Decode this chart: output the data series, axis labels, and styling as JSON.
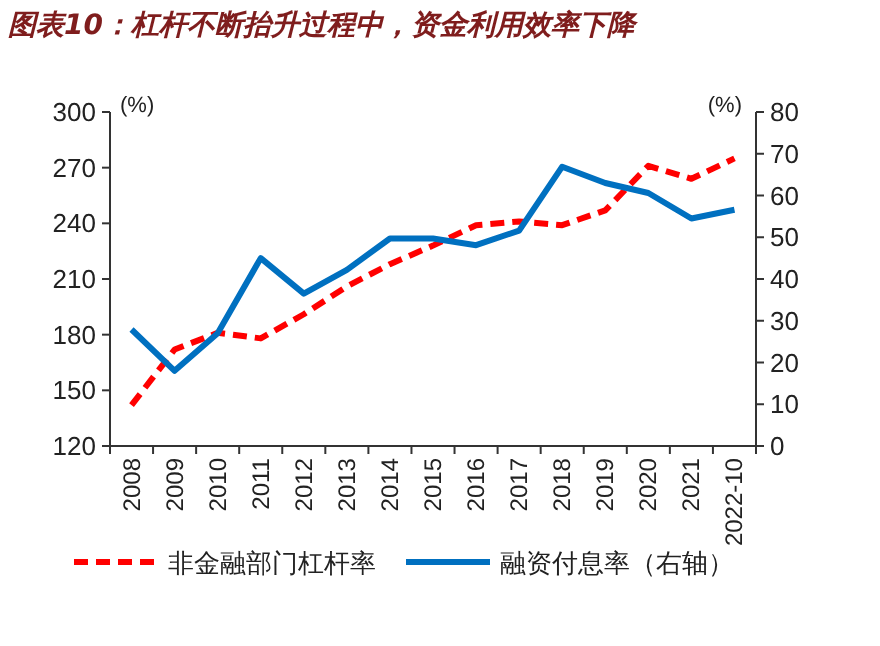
{
  "chart_data": {
    "type": "line",
    "title": "图表10：杠杆不断抬升过程中，资金利用效率下降",
    "ylabel": "(%)",
    "y2label": "(%)",
    "categories": [
      "2008",
      "2009",
      "2010",
      "2011",
      "2012",
      "2013",
      "2014",
      "2015",
      "2016",
      "2017",
      "2018",
      "2019",
      "2020",
      "2021",
      "2022-10"
    ],
    "ylim": [
      120,
      300
    ],
    "yticks": [
      120,
      150,
      180,
      210,
      240,
      270,
      300
    ],
    "y2lim": [
      0,
      80
    ],
    "y2ticks": [
      0,
      10,
      20,
      30,
      40,
      50,
      60,
      70,
      80
    ],
    "legend": "bottom",
    "grid": false,
    "series": [
      {
        "name": "非金融部门杠杆率",
        "color": "#ff0000",
        "line_style": "dashed",
        "values": [
          142,
          172,
          181,
          178,
          191,
          206,
          218,
          228,
          239,
          241,
          239,
          247,
          271,
          264,
          275
        ]
      },
      {
        "name": "融资付息率（右轴）",
        "color": "#0070c0",
        "line_style": "solid",
        "axis": "y2",
        "values": [
          27.9,
          18,
          27,
          45,
          36.5,
          42.2,
          49.7,
          49.7,
          48.1,
          51.6,
          66.9,
          63,
          60.6,
          54.5,
          56.6
        ]
      }
    ]
  }
}
